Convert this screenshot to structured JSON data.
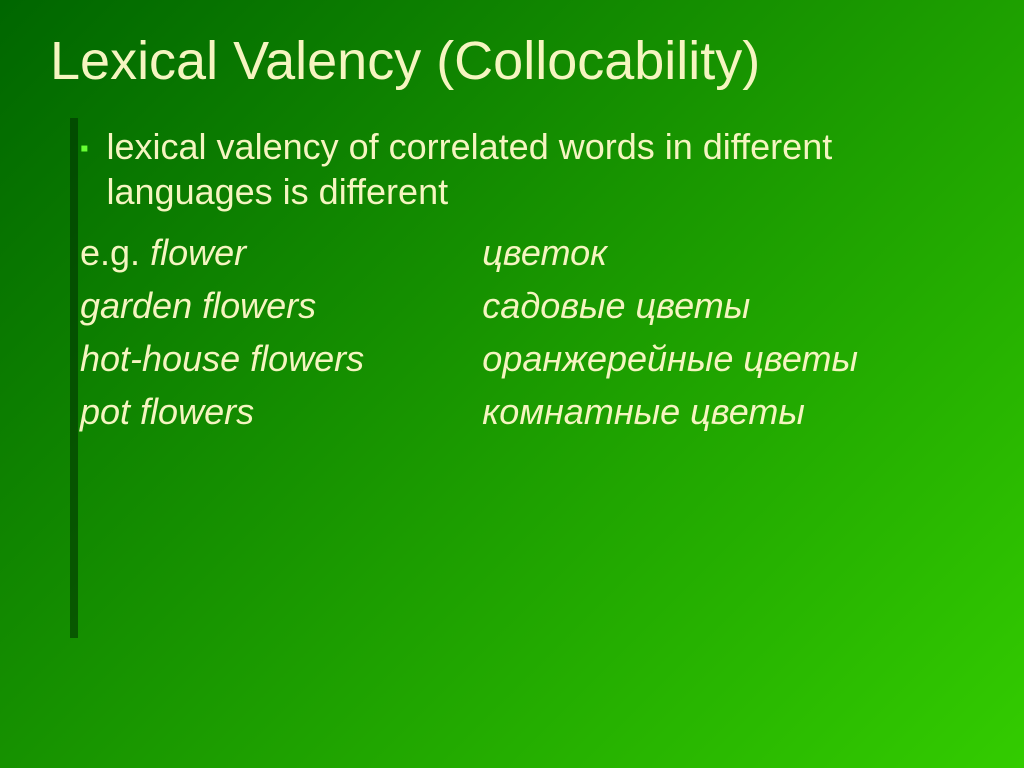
{
  "slide": {
    "title": "Lexical Valency (Collocability)",
    "bullet": "lexical valency of correlated words in different languages is different",
    "eg_prefix": "e.g. ",
    "rows": [
      {
        "left": "flower",
        "right": "цветок"
      },
      {
        "left": "garden flowers",
        "right": "садовые цветы"
      },
      {
        "left": "hot-house flowers",
        "right": "оранжерейные цветы"
      },
      {
        "left": "pot flowers",
        "right": "комнатные цветы"
      }
    ],
    "colors": {
      "title": "#f5f5c0",
      "body": "#f5f5c0",
      "bullet_marker": "#66ff33",
      "bg_gradient_start": "#006600",
      "bg_gradient_mid": "#1a9900",
      "bg_gradient_end": "#33cc00"
    },
    "fontsize": {
      "title": 54,
      "body": 36
    }
  }
}
